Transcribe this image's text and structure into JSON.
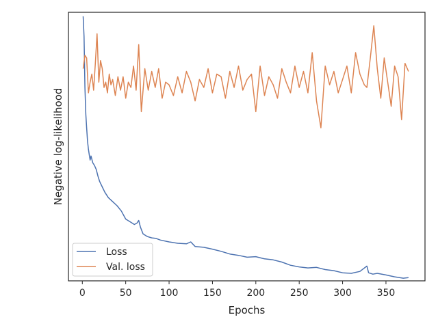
{
  "chart_data": {
    "type": "line",
    "xlabel": "Epochs",
    "ylabel": "Negative log-likelihood",
    "xlim": [
      -16,
      395
    ],
    "ylim": [
      0.0,
      1.0
    ],
    "x_ticks": [
      0,
      50,
      100,
      150,
      200,
      250,
      300,
      350
    ],
    "y_tick_labels_shown": false,
    "legend_position": "lower-left",
    "grid": false,
    "colors": {
      "Loss": "#4c72b0",
      "Val. loss": "#dd8452"
    },
    "series": [
      {
        "name": "Loss",
        "x": [
          1,
          2,
          3,
          4,
          5,
          6,
          7,
          8,
          9,
          10,
          12,
          14,
          16,
          18,
          20,
          23,
          26,
          30,
          35,
          40,
          45,
          50,
          55,
          60,
          63,
          65,
          67,
          70,
          75,
          80,
          85,
          90,
          100,
          110,
          120,
          125,
          130,
          140,
          150,
          160,
          170,
          180,
          190,
          200,
          210,
          220,
          230,
          240,
          250,
          260,
          270,
          280,
          290,
          300,
          310,
          320,
          328,
          330,
          335,
          340,
          350,
          360,
          370,
          376
        ],
        "y": [
          0.985,
          0.91,
          0.72,
          0.62,
          0.57,
          0.52,
          0.49,
          0.47,
          0.45,
          0.465,
          0.44,
          0.43,
          0.415,
          0.39,
          0.37,
          0.35,
          0.33,
          0.31,
          0.295,
          0.28,
          0.26,
          0.23,
          0.22,
          0.21,
          0.215,
          0.225,
          0.2,
          0.175,
          0.165,
          0.16,
          0.158,
          0.152,
          0.145,
          0.14,
          0.138,
          0.145,
          0.128,
          0.125,
          0.118,
          0.11,
          0.1,
          0.095,
          0.088,
          0.09,
          0.082,
          0.078,
          0.07,
          0.058,
          0.052,
          0.048,
          0.05,
          0.042,
          0.038,
          0.03,
          0.028,
          0.035,
          0.055,
          0.03,
          0.025,
          0.028,
          0.022,
          0.015,
          0.01,
          0.012
        ]
      },
      {
        "name": "Val. loss",
        "x": [
          1,
          3,
          5,
          7,
          9,
          11,
          13,
          15,
          17,
          19,
          21,
          23,
          25,
          27,
          29,
          31,
          33,
          35,
          38,
          41,
          44,
          47,
          50,
          53,
          56,
          59,
          62,
          65,
          68,
          72,
          76,
          80,
          84,
          88,
          92,
          96,
          100,
          105,
          110,
          115,
          120,
          125,
          130,
          135,
          140,
          145,
          150,
          155,
          160,
          165,
          170,
          175,
          180,
          185,
          190,
          195,
          200,
          205,
          210,
          215,
          220,
          225,
          230,
          235,
          240,
          245,
          250,
          255,
          260,
          265,
          270,
          275,
          280,
          285,
          290,
          295,
          300,
          305,
          310,
          315,
          320,
          325,
          328,
          332,
          336,
          340,
          344,
          348,
          352,
          356,
          360,
          364,
          368,
          372,
          376
        ],
        "y": [
          0.79,
          0.84,
          0.83,
          0.7,
          0.74,
          0.77,
          0.71,
          0.81,
          0.92,
          0.74,
          0.82,
          0.79,
          0.72,
          0.74,
          0.7,
          0.77,
          0.73,
          0.75,
          0.69,
          0.76,
          0.71,
          0.76,
          0.68,
          0.74,
          0.72,
          0.8,
          0.71,
          0.88,
          0.63,
          0.79,
          0.71,
          0.78,
          0.72,
          0.79,
          0.68,
          0.74,
          0.73,
          0.69,
          0.76,
          0.7,
          0.78,
          0.74,
          0.67,
          0.75,
          0.72,
          0.79,
          0.7,
          0.77,
          0.76,
          0.68,
          0.78,
          0.72,
          0.8,
          0.71,
          0.75,
          0.77,
          0.63,
          0.8,
          0.69,
          0.76,
          0.73,
          0.68,
          0.79,
          0.74,
          0.7,
          0.8,
          0.72,
          0.78,
          0.7,
          0.85,
          0.67,
          0.57,
          0.8,
          0.73,
          0.78,
          0.7,
          0.75,
          0.8,
          0.7,
          0.85,
          0.77,
          0.73,
          0.72,
          0.83,
          0.95,
          0.79,
          0.68,
          0.83,
          0.74,
          0.65,
          0.8,
          0.76,
          0.6,
          0.81,
          0.78
        ]
      }
    ]
  }
}
